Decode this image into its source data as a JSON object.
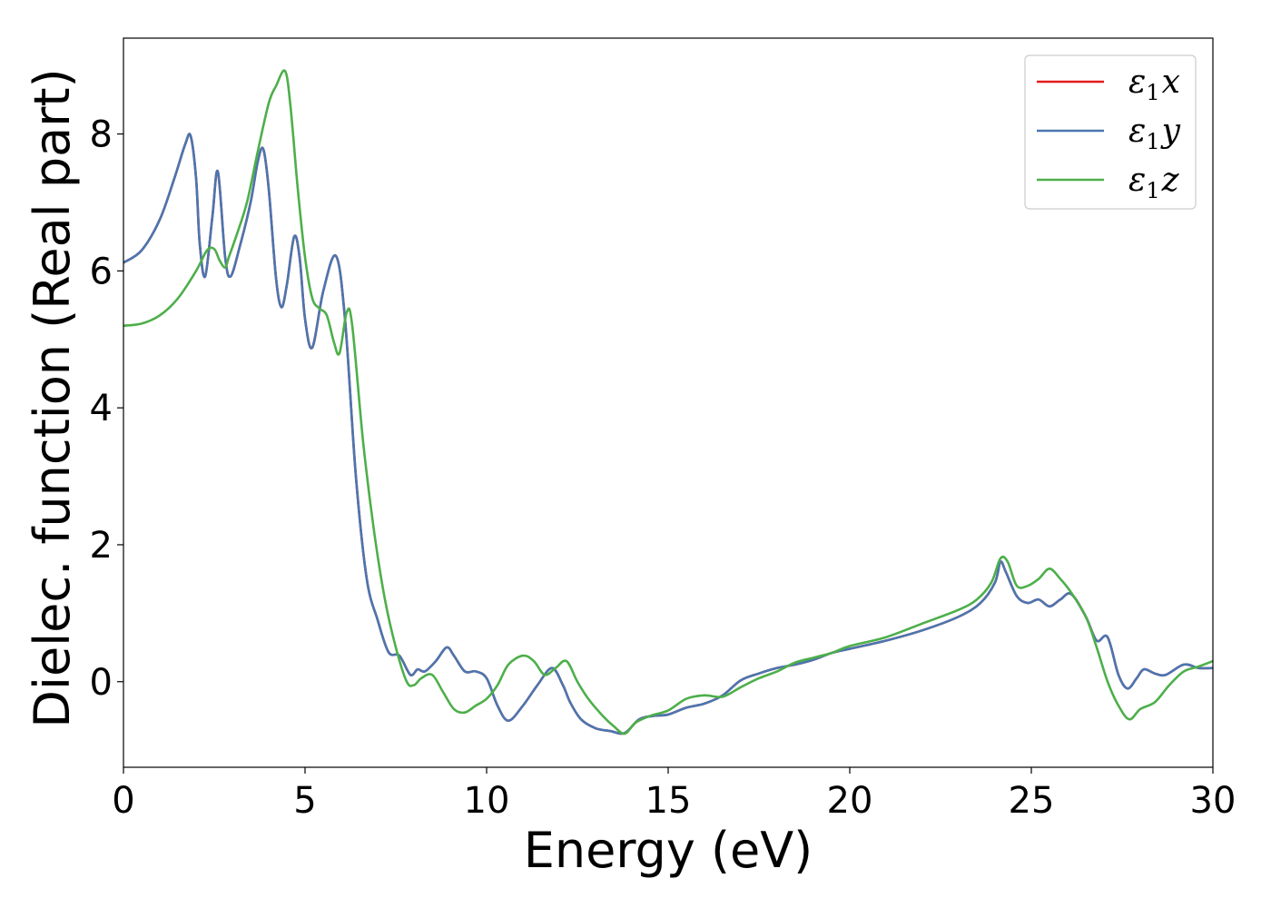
{
  "chart_data": {
    "type": "line",
    "title": "",
    "xlabel": "Energy (eV)",
    "ylabel": "Dielec. function (Real part)",
    "xlim": [
      0,
      30
    ],
    "ylim": [
      -1.25,
      9.4
    ],
    "xticks": [
      0,
      5,
      10,
      15,
      20,
      25,
      30
    ],
    "yticks": [
      0,
      2,
      4,
      6,
      8
    ],
    "grid": false,
    "legend_position": "top-right",
    "series": [
      {
        "name": "ε₁x",
        "legend": {
          "base": "ε",
          "sub": "1",
          "var": "x"
        },
        "color": "#e41a1c",
        "x": [
          0,
          0.5,
          1,
          1.4,
          1.7,
          1.85,
          2,
          2.1,
          2.25,
          2.45,
          2.6,
          2.8,
          2.95,
          3.2,
          3.5,
          3.7,
          3.85,
          4.0,
          4.2,
          4.35,
          4.5,
          4.7,
          4.85,
          5.0,
          5.2,
          5.5,
          5.85,
          6.1,
          6.4,
          6.7,
          7.0,
          7.3,
          7.6,
          7.9,
          8.1,
          8.3,
          8.6,
          8.9,
          9.1,
          9.4,
          9.7,
          10.0,
          10.3,
          10.6,
          11.0,
          11.4,
          11.8,
          12.1,
          12.3,
          12.6,
          13.0,
          13.4,
          13.8,
          14.2,
          14.6,
          15.0,
          15.5,
          16.0,
          16.5,
          17.0,
          17.5,
          18.0,
          18.5,
          19.0,
          19.5,
          20.0,
          21.0,
          22.0,
          23.0,
          23.6,
          24.0,
          24.15,
          24.3,
          24.6,
          24.9,
          25.2,
          25.5,
          25.8,
          26.1,
          26.5,
          26.8,
          27.1,
          27.4,
          27.65,
          27.9,
          28.1,
          28.4,
          28.7,
          29.2,
          29.6,
          30.0
        ],
        "values": [
          6.12,
          6.3,
          6.75,
          7.35,
          7.85,
          7.97,
          7.35,
          6.4,
          5.92,
          6.8,
          7.45,
          6.2,
          5.92,
          6.35,
          7.0,
          7.6,
          7.78,
          7.2,
          5.9,
          5.47,
          5.8,
          6.5,
          6.2,
          5.3,
          4.88,
          5.7,
          6.22,
          5.3,
          3.0,
          1.5,
          0.9,
          0.43,
          0.38,
          0.1,
          0.18,
          0.15,
          0.3,
          0.5,
          0.38,
          0.15,
          0.15,
          0.05,
          -0.35,
          -0.57,
          -0.35,
          -0.05,
          0.2,
          -0.05,
          -0.3,
          -0.55,
          -0.68,
          -0.72,
          -0.75,
          -0.55,
          -0.5,
          -0.48,
          -0.38,
          -0.32,
          -0.2,
          0.02,
          0.12,
          0.2,
          0.25,
          0.32,
          0.42,
          0.48,
          0.6,
          0.75,
          0.95,
          1.15,
          1.45,
          1.75,
          1.6,
          1.25,
          1.15,
          1.2,
          1.1,
          1.2,
          1.28,
          0.95,
          0.6,
          0.65,
          0.1,
          -0.1,
          0.05,
          0.18,
          0.12,
          0.1,
          0.25,
          0.2,
          0.2
        ]
      },
      {
        "name": "ε₁y",
        "legend": {
          "base": "ε",
          "sub": "1",
          "var": "y"
        },
        "color": "#4a76b0",
        "x": [
          0,
          0.5,
          1,
          1.4,
          1.7,
          1.85,
          2,
          2.1,
          2.25,
          2.45,
          2.6,
          2.8,
          2.95,
          3.2,
          3.5,
          3.7,
          3.85,
          4.0,
          4.2,
          4.35,
          4.5,
          4.7,
          4.85,
          5.0,
          5.2,
          5.5,
          5.85,
          6.1,
          6.4,
          6.7,
          7.0,
          7.3,
          7.6,
          7.9,
          8.1,
          8.3,
          8.6,
          8.9,
          9.1,
          9.4,
          9.7,
          10.0,
          10.3,
          10.6,
          11.0,
          11.4,
          11.8,
          12.1,
          12.3,
          12.6,
          13.0,
          13.4,
          13.8,
          14.2,
          14.6,
          15.0,
          15.5,
          16.0,
          16.5,
          17.0,
          17.5,
          18.0,
          18.5,
          19.0,
          19.5,
          20.0,
          21.0,
          22.0,
          23.0,
          23.6,
          24.0,
          24.15,
          24.3,
          24.6,
          24.9,
          25.2,
          25.5,
          25.8,
          26.1,
          26.5,
          26.8,
          27.1,
          27.4,
          27.65,
          27.9,
          28.1,
          28.4,
          28.7,
          29.2,
          29.6,
          30.0
        ],
        "values": [
          6.12,
          6.3,
          6.75,
          7.35,
          7.85,
          7.97,
          7.35,
          6.4,
          5.92,
          6.8,
          7.45,
          6.2,
          5.92,
          6.35,
          7.0,
          7.6,
          7.78,
          7.2,
          5.9,
          5.47,
          5.8,
          6.5,
          6.2,
          5.3,
          4.88,
          5.7,
          6.22,
          5.3,
          3.0,
          1.5,
          0.9,
          0.43,
          0.38,
          0.1,
          0.18,
          0.15,
          0.3,
          0.5,
          0.38,
          0.15,
          0.15,
          0.05,
          -0.35,
          -0.57,
          -0.35,
          -0.05,
          0.2,
          -0.05,
          -0.3,
          -0.55,
          -0.68,
          -0.72,
          -0.75,
          -0.55,
          -0.5,
          -0.48,
          -0.38,
          -0.32,
          -0.2,
          0.02,
          0.12,
          0.2,
          0.25,
          0.32,
          0.42,
          0.48,
          0.6,
          0.75,
          0.95,
          1.15,
          1.45,
          1.75,
          1.6,
          1.25,
          1.15,
          1.2,
          1.1,
          1.2,
          1.28,
          0.95,
          0.6,
          0.65,
          0.1,
          -0.1,
          0.05,
          0.18,
          0.12,
          0.1,
          0.25,
          0.2,
          0.2
        ]
      },
      {
        "name": "ε₁z",
        "legend": {
          "base": "ε",
          "sub": "1",
          "var": "z"
        },
        "color": "#4daf4a",
        "x": [
          0,
          0.5,
          1.0,
          1.5,
          2.0,
          2.3,
          2.5,
          2.65,
          2.8,
          2.9,
          3.1,
          3.4,
          3.7,
          4.0,
          4.2,
          4.45,
          4.6,
          4.8,
          5.0,
          5.2,
          5.4,
          5.6,
          5.8,
          5.95,
          6.15,
          6.3,
          6.6,
          6.9,
          7.2,
          7.5,
          7.8,
          8.0,
          8.2,
          8.5,
          8.8,
          9.1,
          9.4,
          9.7,
          10.0,
          10.3,
          10.6,
          11.0,
          11.3,
          11.6,
          11.9,
          12.2,
          12.5,
          12.8,
          13.2,
          13.5,
          13.8,
          14.1,
          14.5,
          15.0,
          15.5,
          16.0,
          16.5,
          17.0,
          17.5,
          18.0,
          18.5,
          19.0,
          19.5,
          20.0,
          21.0,
          22.0,
          23.0,
          23.5,
          23.9,
          24.15,
          24.35,
          24.6,
          24.9,
          25.2,
          25.5,
          25.8,
          26.1,
          26.5,
          26.8,
          27.1,
          27.4,
          27.7,
          28.0,
          28.4,
          28.8,
          29.2,
          29.6,
          30.0
        ],
        "values": [
          5.2,
          5.23,
          5.35,
          5.6,
          6.0,
          6.3,
          6.32,
          6.15,
          6.05,
          6.2,
          6.5,
          7.0,
          7.75,
          8.45,
          8.7,
          8.92,
          8.4,
          7.2,
          6.2,
          5.6,
          5.45,
          5.35,
          4.95,
          4.8,
          5.4,
          5.2,
          3.5,
          2.2,
          1.2,
          0.5,
          0.0,
          -0.05,
          0.05,
          0.1,
          -0.15,
          -0.4,
          -0.45,
          -0.35,
          -0.25,
          -0.05,
          0.25,
          0.38,
          0.3,
          0.1,
          0.2,
          0.3,
          0.0,
          -0.25,
          -0.5,
          -0.65,
          -0.76,
          -0.6,
          -0.5,
          -0.42,
          -0.25,
          -0.2,
          -0.22,
          -0.08,
          0.05,
          0.15,
          0.28,
          0.35,
          0.42,
          0.52,
          0.65,
          0.85,
          1.05,
          1.2,
          1.45,
          1.8,
          1.75,
          1.4,
          1.4,
          1.5,
          1.65,
          1.5,
          1.3,
          0.95,
          0.5,
          0.0,
          -0.35,
          -0.55,
          -0.4,
          -0.3,
          -0.05,
          0.15,
          0.22,
          0.3
        ]
      }
    ]
  }
}
